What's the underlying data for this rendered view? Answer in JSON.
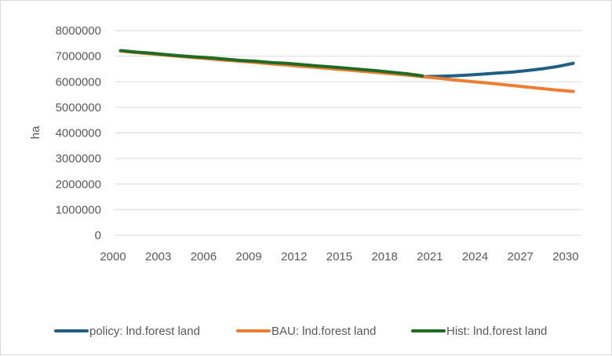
{
  "chart_data": {
    "type": "line",
    "title": "",
    "xlabel": "",
    "ylabel": "ha",
    "ylim": [
      0,
      8000000
    ],
    "yticks": [
      0,
      1000000,
      2000000,
      3000000,
      4000000,
      5000000,
      6000000,
      7000000,
      8000000
    ],
    "xtick_labels": [
      "2000",
      "2003",
      "2006",
      "2009",
      "2012",
      "2015",
      "2018",
      "2021",
      "2024",
      "2027",
      "2030"
    ],
    "grid": true,
    "legend_position": "bottom",
    "series": [
      {
        "name": "policy: lnd.forest land",
        "color": "#1f5f84",
        "x": [
          2020,
          2021,
          2022,
          2023,
          2024,
          2025,
          2026,
          2027,
          2028,
          2029,
          2030
        ],
        "values": [
          6200000,
          6210000,
          6230000,
          6260000,
          6300000,
          6340000,
          6380000,
          6440000,
          6510000,
          6600000,
          6720000
        ]
      },
      {
        "name": "BAU: lnd.forest land",
        "color": "#ed7d31",
        "x": [
          2000,
          2001,
          2002,
          2003,
          2004,
          2005,
          2006,
          2007,
          2008,
          2009,
          2010,
          2011,
          2012,
          2013,
          2014,
          2015,
          2016,
          2017,
          2018,
          2019,
          2020,
          2021,
          2022,
          2023,
          2024,
          2025,
          2026,
          2027,
          2028,
          2029,
          2030
        ],
        "values": [
          7200000,
          7140000,
          7090000,
          7040000,
          6990000,
          6940000,
          6890000,
          6840000,
          6800000,
          6750000,
          6700000,
          6650000,
          6600000,
          6560000,
          6510000,
          6460000,
          6410000,
          6360000,
          6310000,
          6260000,
          6200000,
          6140000,
          6080000,
          6020000,
          5970000,
          5910000,
          5850000,
          5790000,
          5730000,
          5670000,
          5620000
        ]
      },
      {
        "name": "Hist: lnd.forest land",
        "color": "#1e6b24",
        "x": [
          2000,
          2001,
          2002,
          2003,
          2004,
          2005,
          2006,
          2007,
          2008,
          2009,
          2010,
          2011,
          2012,
          2013,
          2014,
          2015,
          2016,
          2017,
          2018,
          2019,
          2020
        ],
        "values": [
          7220000,
          7160000,
          7120000,
          7060000,
          7010000,
          6970000,
          6930000,
          6880000,
          6830000,
          6800000,
          6750000,
          6720000,
          6670000,
          6620000,
          6580000,
          6530000,
          6480000,
          6430000,
          6370000,
          6310000,
          6230000
        ]
      }
    ]
  }
}
